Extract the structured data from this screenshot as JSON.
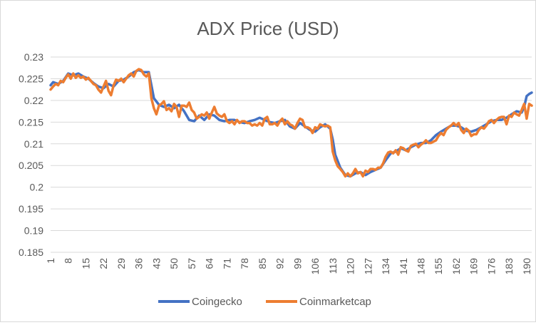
{
  "chart_data": {
    "type": "line",
    "title": "ADX Price (USD)",
    "xlabel": "",
    "ylabel": "",
    "ylim": [
      0.185,
      0.23
    ],
    "y_ticks": [
      "0.185",
      "0.19",
      "0.195",
      "0.2",
      "0.205",
      "0.21",
      "0.215",
      "0.22",
      "0.225",
      "0.23"
    ],
    "x_ticks": [
      "1",
      "8",
      "15",
      "22",
      "29",
      "36",
      "43",
      "50",
      "57",
      "64",
      "71",
      "78",
      "85",
      "92",
      "99",
      "106",
      "113",
      "120",
      "127",
      "134",
      "141",
      "148",
      "155",
      "162",
      "169",
      "176",
      "183",
      "190"
    ],
    "x_range": [
      1,
      192
    ],
    "grid": "horizontal",
    "legend_position": "bottom",
    "series": [
      {
        "name": "Coingecko",
        "color": "#4472c4",
        "points": [
          [
            1,
            0.2235
          ],
          [
            2,
            0.2242
          ],
          [
            4,
            0.2238
          ],
          [
            6,
            0.2245
          ],
          [
            8,
            0.2262
          ],
          [
            10,
            0.2258
          ],
          [
            12,
            0.2262
          ],
          [
            14,
            0.2255
          ],
          [
            16,
            0.225
          ],
          [
            18,
            0.224
          ],
          [
            20,
            0.2232
          ],
          [
            22,
            0.2228
          ],
          [
            24,
            0.2238
          ],
          [
            26,
            0.2232
          ],
          [
            28,
            0.2245
          ],
          [
            30,
            0.2248
          ],
          [
            32,
            0.2255
          ],
          [
            34,
            0.2265
          ],
          [
            36,
            0.227
          ],
          [
            38,
            0.2265
          ],
          [
            40,
            0.2265
          ],
          [
            41,
            0.2235
          ],
          [
            42,
            0.2205
          ],
          [
            44,
            0.219
          ],
          [
            46,
            0.2185
          ],
          [
            48,
            0.219
          ],
          [
            50,
            0.2182
          ],
          [
            52,
            0.219
          ],
          [
            54,
            0.2175
          ],
          [
            56,
            0.2155
          ],
          [
            58,
            0.2152
          ],
          [
            60,
            0.2165
          ],
          [
            62,
            0.2155
          ],
          [
            64,
            0.2168
          ],
          [
            66,
            0.2165
          ],
          [
            68,
            0.2155
          ],
          [
            70,
            0.2152
          ],
          [
            72,
            0.2155
          ],
          [
            74,
            0.2155
          ],
          [
            76,
            0.215
          ],
          [
            78,
            0.2148
          ],
          [
            80,
            0.2152
          ],
          [
            82,
            0.2155
          ],
          [
            84,
            0.216
          ],
          [
            86,
            0.2155
          ],
          [
            88,
            0.215
          ],
          [
            90,
            0.2148
          ],
          [
            92,
            0.2152
          ],
          [
            94,
            0.2155
          ],
          [
            96,
            0.214
          ],
          [
            98,
            0.2135
          ],
          [
            100,
            0.2148
          ],
          [
            102,
            0.214
          ],
          [
            104,
            0.2132
          ],
          [
            106,
            0.2128
          ],
          [
            108,
            0.2138
          ],
          [
            110,
            0.2145
          ],
          [
            112,
            0.2135
          ],
          [
            113,
            0.211
          ],
          [
            114,
            0.2075
          ],
          [
            116,
            0.2045
          ],
          [
            118,
            0.2028
          ],
          [
            120,
            0.2025
          ],
          [
            122,
            0.2032
          ],
          [
            124,
            0.2035
          ],
          [
            126,
            0.2028
          ],
          [
            128,
            0.2035
          ],
          [
            130,
            0.204
          ],
          [
            132,
            0.2045
          ],
          [
            134,
            0.2062
          ],
          [
            136,
            0.2078
          ],
          [
            138,
            0.2082
          ],
          [
            140,
            0.209
          ],
          [
            142,
            0.2085
          ],
          [
            144,
            0.2092
          ],
          [
            146,
            0.2098
          ],
          [
            148,
            0.2102
          ],
          [
            150,
            0.2102
          ],
          [
            152,
            0.2108
          ],
          [
            154,
            0.212
          ],
          [
            156,
            0.2128
          ],
          [
            158,
            0.2135
          ],
          [
            160,
            0.2142
          ],
          [
            162,
            0.2142
          ],
          [
            164,
            0.2138
          ],
          [
            166,
            0.213
          ],
          [
            168,
            0.2128
          ],
          [
            170,
            0.2132
          ],
          [
            172,
            0.2138
          ],
          [
            174,
            0.2145
          ],
          [
            176,
            0.2152
          ],
          [
            178,
            0.2155
          ],
          [
            180,
            0.2155
          ],
          [
            182,
            0.216
          ],
          [
            184,
            0.2168
          ],
          [
            186,
            0.2175
          ],
          [
            188,
            0.2172
          ],
          [
            189,
            0.2185
          ],
          [
            190,
            0.221
          ],
          [
            191,
            0.2215
          ],
          [
            192,
            0.2218
          ]
        ]
      },
      {
        "name": "Coinmarketcap",
        "color": "#ed7d31",
        "points": [
          [
            1,
            0.2225
          ],
          [
            2,
            0.2232
          ],
          [
            3,
            0.2238
          ],
          [
            4,
            0.2235
          ],
          [
            5,
            0.2245
          ],
          [
            6,
            0.2242
          ],
          [
            7,
            0.2252
          ],
          [
            8,
            0.226
          ],
          [
            9,
            0.225
          ],
          [
            10,
            0.2262
          ],
          [
            11,
            0.2252
          ],
          [
            12,
            0.2258
          ],
          [
            13,
            0.2252
          ],
          [
            14,
            0.2255
          ],
          [
            15,
            0.2248
          ],
          [
            16,
            0.2252
          ],
          [
            17,
            0.2245
          ],
          [
            18,
            0.2238
          ],
          [
            19,
            0.2235
          ],
          [
            20,
            0.2225
          ],
          [
            21,
            0.2218
          ],
          [
            22,
            0.2232
          ],
          [
            23,
            0.2245
          ],
          [
            24,
            0.2222
          ],
          [
            25,
            0.2212
          ],
          [
            26,
            0.2235
          ],
          [
            27,
            0.2248
          ],
          [
            28,
            0.2245
          ],
          [
            29,
            0.225
          ],
          [
            30,
            0.2242
          ],
          [
            31,
            0.225
          ],
          [
            32,
            0.2258
          ],
          [
            33,
            0.2262
          ],
          [
            34,
            0.2255
          ],
          [
            35,
            0.2268
          ],
          [
            36,
            0.2272
          ],
          [
            37,
            0.227
          ],
          [
            38,
            0.226
          ],
          [
            39,
            0.2255
          ],
          [
            40,
            0.2262
          ],
          [
            41,
            0.2205
          ],
          [
            42,
            0.2182
          ],
          [
            43,
            0.2168
          ],
          [
            44,
            0.2188
          ],
          [
            45,
            0.2192
          ],
          [
            46,
            0.2198
          ],
          [
            47,
            0.2178
          ],
          [
            48,
            0.2182
          ],
          [
            49,
            0.2175
          ],
          [
            50,
            0.2192
          ],
          [
            51,
            0.2185
          ],
          [
            52,
            0.2162
          ],
          [
            53,
            0.2188
          ],
          [
            54,
            0.2188
          ],
          [
            55,
            0.2185
          ],
          [
            56,
            0.2195
          ],
          [
            57,
            0.2178
          ],
          [
            58,
            0.2172
          ],
          [
            59,
            0.2158
          ],
          [
            60,
            0.2162
          ],
          [
            61,
            0.2168
          ],
          [
            62,
            0.2165
          ],
          [
            63,
            0.2172
          ],
          [
            64,
            0.2158
          ],
          [
            65,
            0.2172
          ],
          [
            66,
            0.2185
          ],
          [
            67,
            0.217
          ],
          [
            68,
            0.2165
          ],
          [
            69,
            0.2162
          ],
          [
            70,
            0.2168
          ],
          [
            71,
            0.2152
          ],
          [
            72,
            0.2148
          ],
          [
            73,
            0.2152
          ],
          [
            74,
            0.2145
          ],
          [
            75,
            0.2155
          ],
          [
            76,
            0.2148
          ],
          [
            77,
            0.2152
          ],
          [
            78,
            0.2152
          ],
          [
            79,
            0.2148
          ],
          [
            80,
            0.2148
          ],
          [
            81,
            0.2142
          ],
          [
            82,
            0.2145
          ],
          [
            83,
            0.2142
          ],
          [
            84,
            0.2148
          ],
          [
            85,
            0.2142
          ],
          [
            86,
            0.2158
          ],
          [
            87,
            0.2162
          ],
          [
            88,
            0.2145
          ],
          [
            89,
            0.2145
          ],
          [
            90,
            0.2148
          ],
          [
            91,
            0.2142
          ],
          [
            92,
            0.2152
          ],
          [
            93,
            0.2158
          ],
          [
            94,
            0.2145
          ],
          [
            95,
            0.2152
          ],
          [
            96,
            0.2145
          ],
          [
            97,
            0.2142
          ],
          [
            98,
            0.2135
          ],
          [
            99,
            0.2148
          ],
          [
            100,
            0.2158
          ],
          [
            101,
            0.2155
          ],
          [
            102,
            0.2138
          ],
          [
            103,
            0.2138
          ],
          [
            104,
            0.2135
          ],
          [
            105,
            0.2125
          ],
          [
            106,
            0.2138
          ],
          [
            107,
            0.2135
          ],
          [
            108,
            0.2145
          ],
          [
            109,
            0.2142
          ],
          [
            110,
            0.214
          ],
          [
            111,
            0.2142
          ],
          [
            112,
            0.2138
          ],
          [
            113,
            0.2082
          ],
          [
            114,
            0.2062
          ],
          [
            115,
            0.2048
          ],
          [
            116,
            0.2042
          ],
          [
            117,
            0.2035
          ],
          [
            118,
            0.2025
          ],
          [
            119,
            0.2032
          ],
          [
            120,
            0.2025
          ],
          [
            121,
            0.2032
          ],
          [
            122,
            0.2042
          ],
          [
            123,
            0.2032
          ],
          [
            124,
            0.2035
          ],
          [
            125,
            0.2025
          ],
          [
            126,
            0.2038
          ],
          [
            127,
            0.2035
          ],
          [
            128,
            0.2042
          ],
          [
            129,
            0.2042
          ],
          [
            130,
            0.204
          ],
          [
            131,
            0.2045
          ],
          [
            132,
            0.2045
          ],
          [
            133,
            0.2055
          ],
          [
            134,
            0.207
          ],
          [
            135,
            0.208
          ],
          [
            136,
            0.2082
          ],
          [
            137,
            0.2078
          ],
          [
            138,
            0.2085
          ],
          [
            139,
            0.2075
          ],
          [
            140,
            0.2092
          ],
          [
            141,
            0.209
          ],
          [
            142,
            0.2085
          ],
          [
            143,
            0.2082
          ],
          [
            144,
            0.2095
          ],
          [
            145,
            0.2098
          ],
          [
            146,
            0.21
          ],
          [
            147,
            0.2092
          ],
          [
            148,
            0.2098
          ],
          [
            149,
            0.2102
          ],
          [
            150,
            0.2108
          ],
          [
            151,
            0.2102
          ],
          [
            152,
            0.2102
          ],
          [
            153,
            0.2105
          ],
          [
            154,
            0.2108
          ],
          [
            155,
            0.2118
          ],
          [
            156,
            0.2125
          ],
          [
            157,
            0.212
          ],
          [
            158,
            0.2132
          ],
          [
            159,
            0.2138
          ],
          [
            160,
            0.2142
          ],
          [
            161,
            0.2148
          ],
          [
            162,
            0.2142
          ],
          [
            163,
            0.2148
          ],
          [
            164,
            0.2132
          ],
          [
            165,
            0.2125
          ],
          [
            166,
            0.2135
          ],
          [
            167,
            0.213
          ],
          [
            168,
            0.2118
          ],
          [
            169,
            0.2122
          ],
          [
            170,
            0.2122
          ],
          [
            171,
            0.2132
          ],
          [
            172,
            0.2138
          ],
          [
            173,
            0.2135
          ],
          [
            174,
            0.2142
          ],
          [
            175,
            0.2152
          ],
          [
            176,
            0.2155
          ],
          [
            177,
            0.2148
          ],
          [
            178,
            0.2155
          ],
          [
            179,
            0.216
          ],
          [
            180,
            0.2162
          ],
          [
            181,
            0.2162
          ],
          [
            182,
            0.2145
          ],
          [
            183,
            0.2165
          ],
          [
            184,
            0.2162
          ],
          [
            185,
            0.2172
          ],
          [
            186,
            0.2168
          ],
          [
            187,
            0.2165
          ],
          [
            188,
            0.2178
          ],
          [
            189,
            0.2192
          ],
          [
            190,
            0.2158
          ],
          [
            191,
            0.2192
          ],
          [
            192,
            0.2188
          ]
        ]
      }
    ]
  }
}
